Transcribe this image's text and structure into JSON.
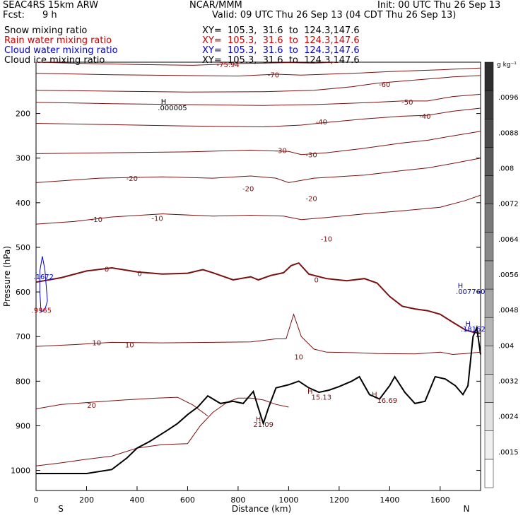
{
  "header": {
    "model": "SEAC4RS 15km ARW",
    "org": "NCAR/MMM",
    "init": "Init: 00 UTC Thu 26 Sep 13",
    "fcst_label": "Fcst:",
    "fcst_value": "9 h",
    "valid": "Valid: 09 UTC Thu 26 Sep 13 (04 CDT Thu 26 Sep 13)",
    "fields": [
      {
        "name": "Snow mixing ratio",
        "xy": "XY=  105.3,  31.6  to  124.3,147.6",
        "color": "#000000"
      },
      {
        "name": "Rain water mixing ratio",
        "xy": "XY=  105.3,  31.6  to  124.3,147.6",
        "color": "#cc0000"
      },
      {
        "name": "Cloud water mixing ratio",
        "xy": "XY=  105.3,  31.6  to  124.3,147.6",
        "color": "#0000cc"
      },
      {
        "name": "Cloud ice mixing ratio",
        "xy": "XY=  105.3,  31.6  to  124.3,147.6",
        "color": "#000000"
      }
    ]
  },
  "chart_data": {
    "type": "line",
    "xlabel": "Distance (km)",
    "ylabel": "Pressure (hPa)",
    "xlim": [
      0,
      1760
    ],
    "ylim": [
      1045,
      85
    ],
    "x_ticks": [
      0,
      200,
      400,
      600,
      800,
      1000,
      1200,
      1400,
      1600
    ],
    "y_ticks": [
      200,
      300,
      400,
      500,
      600,
      700,
      800,
      900,
      1000
    ],
    "direction_labels": {
      "left": "S",
      "right": "N"
    },
    "colorbar": {
      "unit": "g kg⁻¹",
      "ticks": [
        ".0015",
        ".0024",
        ".0032",
        ".004",
        ".0048",
        ".0056",
        ".0064",
        ".0072",
        ".008",
        ".0088",
        ".0096"
      ],
      "colors": [
        "#ffffff",
        "#f0f0f0",
        "#e2e2e2",
        "#d3d3d3",
        "#c4c4c4",
        "#b5b5b5",
        "#a6a6a6",
        "#979797",
        "#888888",
        "#797979",
        "#6a6a6a",
        "#5b5b5b",
        "#4c4c4c",
        "#3d3d3d",
        "#2e2e2e"
      ]
    },
    "isotherms": [
      {
        "label": "-75.94",
        "color": "#7a1010",
        "points": [
          [
            0,
            85
          ],
          [
            200,
            88
          ],
          [
            400,
            90
          ],
          [
            620,
            92
          ],
          [
            700,
            90
          ],
          [
            800,
            88
          ],
          [
            1000,
            86
          ],
          [
            1100,
            87
          ],
          [
            1200,
            85
          ]
        ]
      },
      {
        "label": "-70",
        "color": "#7a1010",
        "points": [
          [
            0,
            110
          ],
          [
            300,
            113
          ],
          [
            600,
            115
          ],
          [
            800,
            116
          ],
          [
            950,
            112
          ],
          [
            1050,
            114
          ],
          [
            1150,
            112
          ],
          [
            1250,
            110
          ],
          [
            1400,
            106
          ],
          [
            1600,
            102
          ],
          [
            1760,
            98
          ]
        ]
      },
      {
        "label": "-60",
        "color": "#7a1010",
        "points": [
          [
            0,
            148
          ],
          [
            300,
            150
          ],
          [
            600,
            152
          ],
          [
            900,
            151
          ],
          [
            1100,
            148
          ],
          [
            1250,
            140
          ],
          [
            1350,
            132
          ],
          [
            1500,
            125
          ],
          [
            1650,
            118
          ],
          [
            1760,
            115
          ]
        ]
      },
      {
        "label": "-50",
        "color": "#7a1010",
        "points": [
          [
            0,
            175
          ],
          [
            300,
            178
          ],
          [
            600,
            180
          ],
          [
            900,
            182
          ],
          [
            1100,
            180
          ],
          [
            1300,
            176
          ],
          [
            1450,
            172
          ],
          [
            1550,
            172
          ],
          [
            1650,
            162
          ],
          [
            1760,
            157
          ]
        ]
      },
      {
        "label": "-40",
        "color": "#7a1010",
        "points": [
          [
            0,
            222
          ],
          [
            300,
            225
          ],
          [
            600,
            228
          ],
          [
            900,
            230
          ],
          [
            1050,
            226
          ],
          [
            1150,
            220
          ],
          [
            1300,
            212
          ],
          [
            1450,
            206
          ],
          [
            1550,
            204
          ],
          [
            1650,
            195
          ],
          [
            1760,
            188
          ]
        ]
      },
      {
        "label": "-30",
        "color": "#7a1010",
        "points": [
          [
            0,
            290
          ],
          [
            300,
            288
          ],
          [
            600,
            286
          ],
          [
            850,
            282
          ],
          [
            1000,
            285
          ],
          [
            1050,
            292
          ],
          [
            1150,
            288
          ],
          [
            1300,
            278
          ],
          [
            1450,
            266
          ],
          [
            1550,
            260
          ],
          [
            1650,
            250
          ],
          [
            1760,
            240
          ]
        ]
      },
      {
        "label": "-20",
        "color": "#7a1010",
        "points": [
          [
            0,
            355
          ],
          [
            250,
            345
          ],
          [
            500,
            342
          ],
          [
            700,
            345
          ],
          [
            850,
            340
          ],
          [
            950,
            345
          ],
          [
            1000,
            355
          ],
          [
            1100,
            345
          ],
          [
            1300,
            338
          ],
          [
            1450,
            328
          ],
          [
            1550,
            322
          ],
          [
            1650,
            312
          ],
          [
            1760,
            300
          ]
        ]
      },
      {
        "label": "-10",
        "color": "#7a1010",
        "points": [
          [
            0,
            448
          ],
          [
            150,
            442
          ],
          [
            300,
            432
          ],
          [
            500,
            425
          ],
          [
            700,
            430
          ],
          [
            850,
            428
          ],
          [
            980,
            430
          ],
          [
            1050,
            438
          ],
          [
            1150,
            433
          ],
          [
            1300,
            425
          ],
          [
            1450,
            418
          ],
          [
            1600,
            410
          ],
          [
            1700,
            395
          ],
          [
            1760,
            383
          ]
        ]
      },
      {
        "label": "0",
        "color": "#7a1010",
        "bold": true,
        "points": [
          [
            0,
            578
          ],
          [
            100,
            568
          ],
          [
            200,
            553
          ],
          [
            300,
            546
          ],
          [
            400,
            555
          ],
          [
            500,
            560
          ],
          [
            600,
            558
          ],
          [
            660,
            550
          ],
          [
            700,
            557
          ],
          [
            780,
            573
          ],
          [
            850,
            566
          ],
          [
            880,
            573
          ],
          [
            930,
            563
          ],
          [
            980,
            557
          ],
          [
            1010,
            541
          ],
          [
            1040,
            535
          ],
          [
            1080,
            560
          ],
          [
            1150,
            570
          ],
          [
            1230,
            575
          ],
          [
            1300,
            570
          ],
          [
            1350,
            580
          ],
          [
            1400,
            610
          ],
          [
            1450,
            632
          ],
          [
            1500,
            638
          ],
          [
            1550,
            642
          ],
          [
            1600,
            650
          ],
          [
            1650,
            668
          ],
          [
            1700,
            685
          ],
          [
            1730,
            690
          ],
          [
            1760,
            693
          ]
        ]
      },
      {
        "label": "10",
        "color": "#7a1010",
        "points": [
          [
            0,
            722
          ],
          [
            150,
            718
          ],
          [
            300,
            713
          ],
          [
            500,
            714
          ],
          [
            700,
            713
          ],
          [
            850,
            712
          ],
          [
            950,
            705
          ],
          [
            990,
            705
          ],
          [
            1020,
            650
          ],
          [
            1050,
            700
          ],
          [
            1100,
            728
          ],
          [
            1150,
            735
          ],
          [
            1250,
            736
          ],
          [
            1350,
            738
          ],
          [
            1500,
            739
          ],
          [
            1600,
            735
          ],
          [
            1650,
            740
          ],
          [
            1700,
            738
          ],
          [
            1760,
            735
          ]
        ]
      },
      {
        "label": "20",
        "color": "#7a1010",
        "points": [
          [
            0,
            862
          ],
          [
            100,
            852
          ],
          [
            200,
            848
          ],
          [
            350,
            842
          ],
          [
            480,
            838
          ],
          [
            560,
            836
          ],
          [
            620,
            853
          ],
          [
            680,
            878
          ]
        ]
      },
      {
        "label": "",
        "color": "#7a1010",
        "points": [
          [
            0,
            990
          ],
          [
            100,
            983
          ],
          [
            200,
            975
          ],
          [
            300,
            968
          ],
          [
            400,
            950
          ],
          [
            500,
            942
          ],
          [
            600,
            940
          ],
          [
            650,
            900
          ],
          [
            700,
            870
          ],
          [
            760,
            846
          ],
          [
            800,
            838
          ],
          [
            850,
            838
          ],
          [
            900,
            842
          ],
          [
            950,
            852
          ],
          [
            1000,
            858
          ]
        ]
      }
    ],
    "terrain": {
      "color": "#000000",
      "points": [
        [
          0,
          1007
        ],
        [
          100,
          1007
        ],
        [
          200,
          1007
        ],
        [
          300,
          998
        ],
        [
          360,
          972
        ],
        [
          400,
          950
        ],
        [
          450,
          935
        ],
        [
          520,
          910
        ],
        [
          560,
          895
        ],
        [
          600,
          875
        ],
        [
          640,
          858
        ],
        [
          680,
          833
        ],
        [
          730,
          850
        ],
        [
          780,
          845
        ],
        [
          820,
          850
        ],
        [
          860,
          823
        ],
        [
          880,
          860
        ],
        [
          900,
          895
        ],
        [
          920,
          860
        ],
        [
          950,
          815
        ],
        [
          1000,
          808
        ],
        [
          1040,
          800
        ],
        [
          1080,
          815
        ],
        [
          1120,
          825
        ],
        [
          1160,
          820
        ],
        [
          1200,
          812
        ],
        [
          1250,
          800
        ],
        [
          1280,
          790
        ],
        [
          1320,
          830
        ],
        [
          1360,
          840
        ],
        [
          1400,
          810
        ],
        [
          1420,
          790
        ],
        [
          1460,
          825
        ],
        [
          1500,
          850
        ],
        [
          1540,
          845
        ],
        [
          1580,
          790
        ],
        [
          1620,
          795
        ],
        [
          1660,
          810
        ],
        [
          1690,
          830
        ],
        [
          1710,
          810
        ],
        [
          1730,
          700
        ],
        [
          1745,
          680
        ],
        [
          1760,
          740
        ]
      ]
    },
    "cloud_water": {
      "color": "#0000cc",
      "points": [
        [
          15,
          553
        ],
        [
          25,
          520
        ],
        [
          35,
          550
        ],
        [
          40,
          585
        ],
        [
          45,
          620
        ],
        [
          35,
          640
        ],
        [
          20,
          645
        ],
        [
          15,
          600
        ],
        [
          15,
          553
        ]
      ]
    },
    "labels": [
      {
        "text": "-75.94",
        "x": 760,
        "y": 90,
        "color": "#7a1010"
      },
      {
        "text": "-70",
        "x": 940,
        "y": 113,
        "color": "#7a1010"
      },
      {
        "text": "-60",
        "x": 1380,
        "y": 134,
        "color": "#7a1010"
      },
      {
        "text": "-50",
        "x": 1470,
        "y": 174,
        "color": "#7a1010"
      },
      {
        "text": "-40",
        "x": 1130,
        "y": 218,
        "color": "#7a1010"
      },
      {
        "text": "-40",
        "x": 1540,
        "y": 205,
        "color": "#7a1010"
      },
      {
        "text": "-30",
        "x": 970,
        "y": 282,
        "color": "#7a1010"
      },
      {
        "text": "-30",
        "x": 1090,
        "y": 292,
        "color": "#7a1010"
      },
      {
        "text": "-20",
        "x": 380,
        "y": 345,
        "color": "#7a1010"
      },
      {
        "text": "-20",
        "x": 840,
        "y": 368,
        "color": "#7a1010"
      },
      {
        "text": "-20",
        "x": 1090,
        "y": 390,
        "color": "#7a1010"
      },
      {
        "text": "-10",
        "x": 240,
        "y": 437,
        "color": "#7a1010"
      },
      {
        "text": "-10",
        "x": 480,
        "y": 434,
        "color": "#7a1010"
      },
      {
        "text": "-10",
        "x": 1150,
        "y": 480,
        "color": "#7a1010"
      },
      {
        "text": "0",
        "x": 280,
        "y": 548,
        "color": "#7a1010"
      },
      {
        "text": "0",
        "x": 410,
        "y": 558,
        "color": "#7a1010"
      },
      {
        "text": "0",
        "x": 1110,
        "y": 572,
        "color": "#7a1010"
      },
      {
        "text": "10",
        "x": 240,
        "y": 713,
        "color": "#7a1010"
      },
      {
        "text": "10",
        "x": 370,
        "y": 718,
        "color": "#7a1010"
      },
      {
        "text": "10",
        "x": 1040,
        "y": 745,
        "color": "#7a1010"
      },
      {
        "text": "20",
        "x": 220,
        "y": 853,
        "color": "#7a1010"
      },
      {
        "text": "H",
        "x": 505,
        "y": 172,
        "color": "#000000"
      },
      {
        "text": ".000005",
        "x": 540,
        "y": 186,
        "color": "#000000"
      },
      {
        "text": "H",
        "x": 880,
        "y": 884,
        "color": "#7a1010"
      },
      {
        "text": "21.09",
        "x": 900,
        "y": 896,
        "color": "#7a1010"
      },
      {
        "text": "H",
        "x": 1085,
        "y": 822,
        "color": "#7a1010"
      },
      {
        "text": "15.13",
        "x": 1130,
        "y": 835,
        "color": "#7a1010"
      },
      {
        "text": "H",
        "x": 1340,
        "y": 829,
        "color": "#7a1010"
      },
      {
        "text": "16.69",
        "x": 1390,
        "y": 842,
        "color": "#7a1010"
      },
      {
        "text": ".1672",
        "x": 30,
        "y": 565,
        "color": "#0000cc"
      },
      {
        "text": ".9965",
        "x": 22,
        "y": 640,
        "color": "#cc0000"
      },
      {
        "text": "H",
        "x": 1680,
        "y": 585,
        "color": "#0000cc"
      },
      {
        "text": ".007760",
        "x": 1720,
        "y": 598,
        "color": "#0000cc"
      },
      {
        "text": "H",
        "x": 1710,
        "y": 670,
        "color": "#0000cc"
      },
      {
        "text": ".18162",
        "x": 1730,
        "y": 682,
        "color": "#0000cc"
      }
    ]
  }
}
